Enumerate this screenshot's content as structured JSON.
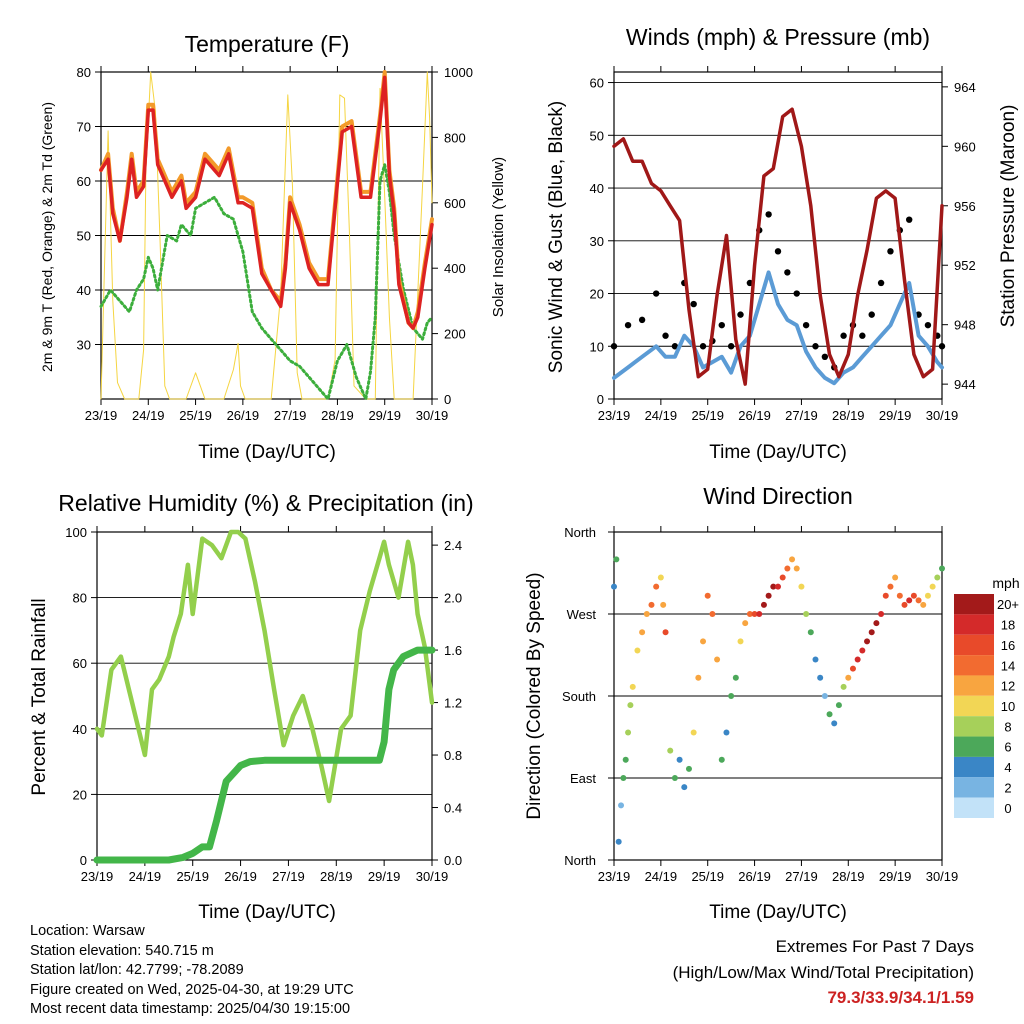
{
  "x_tick_labels": [
    "23/19",
    "24/19",
    "25/19",
    "26/19",
    "27/19",
    "28/19",
    "29/19",
    "30/19"
  ],
  "chart_data": [
    {
      "type": "line",
      "title": "Temperature (F)",
      "xlabel": "Time (Day/UTC)",
      "ylabel": "2m & 9m T (Red, Orange) & 2m Td (Green)",
      "y2label": "Solar Insolation (Yellow)",
      "ylim": [
        20,
        80
      ],
      "yticks": [
        30,
        40,
        50,
        60,
        70,
        80
      ],
      "y2lim": [
        0,
        1000
      ],
      "y2ticks": [
        0,
        200,
        400,
        600,
        800,
        1000
      ],
      "xlim_days": [
        0,
        7
      ],
      "grid": "horizontal",
      "colors": {
        "t2m": "#dd2222",
        "t9m": "#f39a2a",
        "td": "#3cae3c",
        "solar": "#f5d542"
      },
      "series": [
        {
          "key": "t9m",
          "x": [
            0,
            0.15,
            0.25,
            0.4,
            0.55,
            0.65,
            0.75,
            0.9,
            1,
            1.1,
            1.2,
            1.3,
            1.5,
            1.7,
            1.8,
            2,
            2.2,
            2.5,
            2.7,
            2.9,
            3,
            3.2,
            3.4,
            3.6,
            3.8,
            3.9,
            4,
            4.2,
            4.4,
            4.6,
            4.8,
            4.95,
            5.1,
            5.3,
            5.5,
            5.7,
            5.9,
            6,
            6.1,
            6.2,
            6.3,
            6.5,
            6.6,
            6.7,
            6.85,
            7
          ],
          "y": [
            62,
            65,
            55,
            49,
            58,
            65,
            58,
            60,
            74,
            74,
            64,
            62,
            58,
            61,
            56,
            58,
            65,
            62,
            66,
            57,
            57,
            56,
            44,
            40,
            38,
            45,
            57,
            52,
            45,
            42,
            42,
            56,
            70,
            71,
            58,
            58,
            72,
            80,
            62,
            55,
            42,
            34,
            33,
            36,
            45,
            53
          ]
        },
        {
          "key": "t2m",
          "x": [
            0,
            0.15,
            0.25,
            0.4,
            0.55,
            0.65,
            0.75,
            0.9,
            1,
            1.1,
            1.2,
            1.3,
            1.5,
            1.7,
            1.8,
            2,
            2.2,
            2.5,
            2.7,
            2.9,
            3,
            3.2,
            3.4,
            3.6,
            3.8,
            3.9,
            4,
            4.2,
            4.4,
            4.6,
            4.8,
            4.95,
            5.1,
            5.3,
            5.5,
            5.7,
            5.9,
            6,
            6.1,
            6.2,
            6.3,
            6.5,
            6.6,
            6.7,
            6.85,
            7
          ],
          "y": [
            62,
            64,
            54,
            49,
            57,
            64,
            57,
            59,
            73,
            73,
            63,
            61,
            57,
            60,
            55,
            57,
            64,
            61,
            65,
            56,
            56,
            55,
            43,
            40,
            37,
            44,
            56,
            51,
            44,
            41,
            41,
            55,
            69,
            70,
            57,
            57,
            71,
            79,
            61,
            54,
            41,
            34,
            33,
            35,
            44,
            52
          ]
        },
        {
          "key": "td",
          "x": [
            0,
            0.2,
            0.4,
            0.6,
            0.75,
            0.9,
            1,
            1.1,
            1.2,
            1.4,
            1.6,
            1.7,
            1.9,
            2,
            2.2,
            2.4,
            2.6,
            2.8,
            3,
            3.2,
            3.4,
            3.6,
            3.8,
            4,
            4.2,
            4.4,
            4.6,
            4.8,
            5,
            5.2,
            5.4,
            5.6,
            5.7,
            5.8,
            5.9,
            6,
            6.1,
            6.2,
            6.4,
            6.6,
            6.8,
            6.9,
            7
          ],
          "y": [
            37,
            40,
            38,
            36,
            40,
            42,
            46,
            44,
            40,
            50,
            49,
            52,
            50,
            55,
            56,
            57,
            54,
            53,
            47,
            36,
            33,
            31,
            29,
            27,
            26,
            24,
            22,
            20,
            27,
            30,
            24,
            20,
            25,
            35,
            60,
            63,
            58,
            50,
            40,
            33,
            31,
            34,
            35
          ]
        },
        {
          "key": "solar",
          "axis": "right",
          "x": [
            0,
            0.15,
            0.25,
            0.35,
            0.5,
            0.6,
            0.7,
            0.8,
            0.9,
            0.95,
            1.05,
            1.15,
            1.25,
            1.35,
            1.45,
            1.6,
            1.8,
            2,
            2.2,
            2.4,
            2.6,
            2.8,
            2.9,
            2.95,
            3.05,
            3.15,
            3.25,
            3.35,
            3.6,
            3.8,
            3.95,
            4.05,
            4.15,
            4.25,
            4.35,
            4.6,
            4.8,
            4.95,
            5.05,
            5.15,
            5.25,
            5.35,
            5.6,
            5.8,
            5.9,
            6,
            6.1,
            6.2,
            6.3,
            6.6,
            6.8,
            6.9,
            6.95,
            7
          ],
          "y": [
            0,
            820,
            300,
            50,
            0,
            0,
            0,
            0,
            150,
            700,
            1000,
            880,
            480,
            40,
            0,
            0,
            0,
            80,
            0,
            0,
            0,
            90,
            170,
            40,
            0,
            0,
            0,
            0,
            0,
            320,
            930,
            650,
            80,
            0,
            0,
            0,
            0,
            120,
            930,
            920,
            520,
            40,
            0,
            0,
            950,
            620,
            250,
            0,
            0,
            0,
            650,
            1000,
            860,
            600
          ]
        }
      ]
    },
    {
      "type": "line",
      "title": "Winds (mph) & Pressure (mb)",
      "xlabel": "Time (Day/UTC)",
      "ylabel": "Sonic Wind & Gust (Blue, Black)",
      "y2label": "Station Pressure (Maroon)",
      "ylim": [
        0,
        62
      ],
      "yticks": [
        0,
        10,
        20,
        30,
        40,
        50,
        60
      ],
      "y2lim": [
        943,
        965
      ],
      "y2ticks": [
        944,
        948,
        952,
        956,
        960,
        964
      ],
      "xlim_days": [
        0,
        7
      ],
      "grid": "horizontal",
      "colors": {
        "wind": "#5b9bd5",
        "gust": "#000000",
        "pressure": "#a01818"
      },
      "series": [
        {
          "key": "wind",
          "x": [
            0,
            0.3,
            0.6,
            0.9,
            1.1,
            1.3,
            1.5,
            1.7,
            1.9,
            2.1,
            2.3,
            2.5,
            2.7,
            2.9,
            3.1,
            3.3,
            3.5,
            3.7,
            3.9,
            4.1,
            4.3,
            4.5,
            4.7,
            4.9,
            5.1,
            5.3,
            5.5,
            5.7,
            5.9,
            6.1,
            6.3,
            6.5,
            6.7,
            6.9,
            7
          ],
          "y": [
            4,
            6,
            8,
            10,
            8,
            8,
            12,
            10,
            6,
            7,
            8,
            5,
            10,
            12,
            18,
            24,
            18,
            15,
            14,
            9,
            6,
            4,
            3,
            5,
            6,
            8,
            10,
            12,
            14,
            18,
            22,
            12,
            10,
            7,
            6
          ]
        },
        {
          "key": "gust",
          "x": [
            0,
            0.3,
            0.6,
            0.9,
            1.1,
            1.3,
            1.5,
            1.7,
            1.9,
            2.1,
            2.3,
            2.5,
            2.7,
            2.9,
            3.1,
            3.3,
            3.5,
            3.7,
            3.9,
            4.1,
            4.3,
            4.5,
            4.7,
            4.9,
            5.1,
            5.3,
            5.5,
            5.7,
            5.9,
            6.1,
            6.3,
            6.5,
            6.7,
            6.9,
            7
          ],
          "y": [
            10,
            14,
            15,
            20,
            12,
            10,
            22,
            18,
            10,
            11,
            14,
            10,
            16,
            22,
            32,
            35,
            28,
            24,
            20,
            14,
            10,
            8,
            6,
            12,
            14,
            12,
            16,
            22,
            28,
            32,
            34,
            16,
            14,
            12,
            10
          ]
        },
        {
          "key": "pressure",
          "axis": "right",
          "x": [
            0,
            0.2,
            0.4,
            0.6,
            0.8,
            1,
            1.2,
            1.4,
            1.6,
            1.8,
            2,
            2.2,
            2.4,
            2.6,
            2.8,
            3,
            3.2,
            3.4,
            3.6,
            3.8,
            4,
            4.2,
            4.4,
            4.6,
            4.8,
            5,
            5.2,
            5.4,
            5.6,
            5.8,
            6,
            6.2,
            6.4,
            6.6,
            6.8,
            7
          ],
          "y": [
            960,
            960.5,
            959,
            959,
            957.5,
            957,
            956,
            955,
            949,
            944.5,
            945,
            950,
            954,
            947,
            944,
            952,
            958,
            958.5,
            962,
            962.5,
            960,
            956,
            950,
            946,
            944.5,
            946,
            950,
            953,
            956.5,
            957,
            956.5,
            951,
            946,
            944.5,
            945,
            956
          ]
        }
      ]
    },
    {
      "type": "line",
      "title": "Relative Humidity (%) & Precipitation (in)",
      "xlabel": "Time (Day/UTC)",
      "ylabel": "Percent & Total Rainfall",
      "ylim": [
        0,
        100
      ],
      "yticks": [
        0,
        20,
        40,
        60,
        80,
        100
      ],
      "y2lim": [
        0,
        2.5
      ],
      "y2ticks": [
        "0.0",
        "0.4",
        "0.8",
        "1.2",
        "1.6",
        "2.0",
        "2.4"
      ],
      "xlim_days": [
        0,
        7
      ],
      "grid": "horizontal",
      "colors": {
        "rh": "#93cf4c",
        "precip": "#43b649"
      },
      "series": [
        {
          "key": "rh",
          "x": [
            0,
            0.1,
            0.3,
            0.5,
            0.7,
            0.9,
            1,
            1.15,
            1.3,
            1.5,
            1.6,
            1.75,
            1.9,
            2,
            2.2,
            2.4,
            2.6,
            2.8,
            2.95,
            3.1,
            3.3,
            3.5,
            3.7,
            3.9,
            4.1,
            4.3,
            4.5,
            4.7,
            4.85,
            5.1,
            5.3,
            5.5,
            5.7,
            5.9,
            6,
            6.1,
            6.3,
            6.5,
            6.6,
            6.7,
            6.85,
            7
          ],
          "y": [
            40,
            38,
            58,
            62,
            50,
            38,
            32,
            52,
            55,
            62,
            68,
            75,
            90,
            75,
            98,
            96,
            92,
            100,
            100,
            98,
            85,
            70,
            52,
            35,
            44,
            50,
            40,
            28,
            18,
            40,
            44,
            70,
            82,
            92,
            97,
            90,
            80,
            97,
            90,
            75,
            65,
            48
          ]
        },
        {
          "key": "precip",
          "axis": "right",
          "x": [
            0,
            0.5,
            1,
            1.5,
            1.8,
            2,
            2.2,
            2.35,
            2.5,
            2.7,
            2.9,
            3,
            3.2,
            3.5,
            4,
            4.5,
            5,
            5.5,
            5.9,
            6,
            6.1,
            6.2,
            6.4,
            6.7,
            7
          ],
          "y": [
            0,
            0,
            0,
            0,
            0.02,
            0.05,
            0.1,
            0.1,
            0.3,
            0.6,
            0.68,
            0.72,
            0.75,
            0.76,
            0.76,
            0.76,
            0.76,
            0.76,
            0.76,
            0.9,
            1.3,
            1.45,
            1.55,
            1.6,
            1.6
          ]
        }
      ]
    },
    {
      "type": "scatter",
      "title": "Wind Direction",
      "xlabel": "Time (Day/UTC)",
      "ylabel": "Direction (Colored By Speed)",
      "ytick_labels": [
        "North",
        "East",
        "South",
        "West",
        "North"
      ],
      "ylim_deg": [
        0,
        360
      ],
      "xlim_days": [
        0,
        7
      ],
      "grid": "horizontal",
      "colorbar_unit": "mph",
      "colorbar_labels": [
        "20+",
        "18",
        "16",
        "14",
        "12",
        "10",
        "8",
        "6",
        "4",
        "2",
        "0"
      ],
      "colorbar_colors": [
        "#a31a1a",
        "#d42a2a",
        "#e84a2a",
        "#f26b30",
        "#f8a540",
        "#f2d655",
        "#a6d05a",
        "#4ca85a",
        "#3a86c6",
        "#78b4e2",
        "#c2e2f8"
      ],
      "x": [
        0,
        0.05,
        0.1,
        0.15,
        0.2,
        0.25,
        0.3,
        0.35,
        0.4,
        0.5,
        0.6,
        0.7,
        0.8,
        0.9,
        1,
        1.05,
        1.1,
        1.2,
        1.3,
        1.4,
        1.5,
        1.6,
        1.7,
        1.8,
        1.9,
        2,
        2.1,
        2.2,
        2.3,
        2.4,
        2.5,
        2.6,
        2.7,
        2.8,
        2.9,
        3,
        3.1,
        3.2,
        3.3,
        3.4,
        3.5,
        3.6,
        3.7,
        3.8,
        3.9,
        4,
        4.1,
        4.2,
        4.3,
        4.4,
        4.5,
        4.6,
        4.7,
        4.8,
        4.9,
        5,
        5.1,
        5.2,
        5.3,
        5.4,
        5.5,
        5.6,
        5.7,
        5.8,
        5.9,
        6,
        6.1,
        6.2,
        6.3,
        6.4,
        6.5,
        6.6,
        6.7,
        6.8,
        6.9,
        7
      ],
      "y": [
        300,
        330,
        20,
        60,
        90,
        110,
        140,
        170,
        190,
        230,
        250,
        270,
        280,
        300,
        310,
        280,
        250,
        120,
        90,
        110,
        80,
        100,
        140,
        200,
        240,
        290,
        270,
        220,
        110,
        140,
        180,
        200,
        240,
        260,
        270,
        270,
        270,
        280,
        290,
        300,
        300,
        310,
        320,
        330,
        320,
        300,
        270,
        250,
        220,
        200,
        180,
        160,
        150,
        170,
        190,
        200,
        210,
        220,
        230,
        240,
        250,
        260,
        270,
        290,
        300,
        310,
        290,
        280,
        285,
        290,
        285,
        280,
        290,
        300,
        310,
        320
      ],
      "speed": [
        4,
        6,
        3,
        2,
        5,
        6,
        7,
        8,
        9,
        10,
        11,
        12,
        13,
        14,
        10,
        12,
        15,
        8,
        5,
        3,
        4,
        6,
        9,
        11,
        12,
        13,
        14,
        12,
        5,
        4,
        5,
        6,
        10,
        12,
        13,
        16,
        18,
        19,
        20,
        19,
        17,
        15,
        13,
        11,
        12,
        10,
        8,
        6,
        4,
        3,
        2,
        5,
        4,
        6,
        7,
        12,
        15,
        17,
        18,
        19,
        20,
        20,
        18,
        16,
        14,
        12,
        14,
        16,
        17,
        15,
        13,
        12,
        10,
        9,
        8,
        6
      ]
    }
  ],
  "station_info": [
    "Location: Warsaw",
    "Station elevation: 540.715 m",
    "Station lat/lon: 42.7799; -78.2089",
    "Figure created on Wed, 2025-04-30, at 19:29 UTC",
    "Most recent data timestamp: 2025/04/30 19:15:00"
  ],
  "extremes": {
    "heading": "Extremes For Past 7 Days",
    "subheading": "(High/Low/Max Wind/Total Precipitation)",
    "values": "79.3/33.9/34.1/1.59",
    "value_color": "#cc2222"
  }
}
